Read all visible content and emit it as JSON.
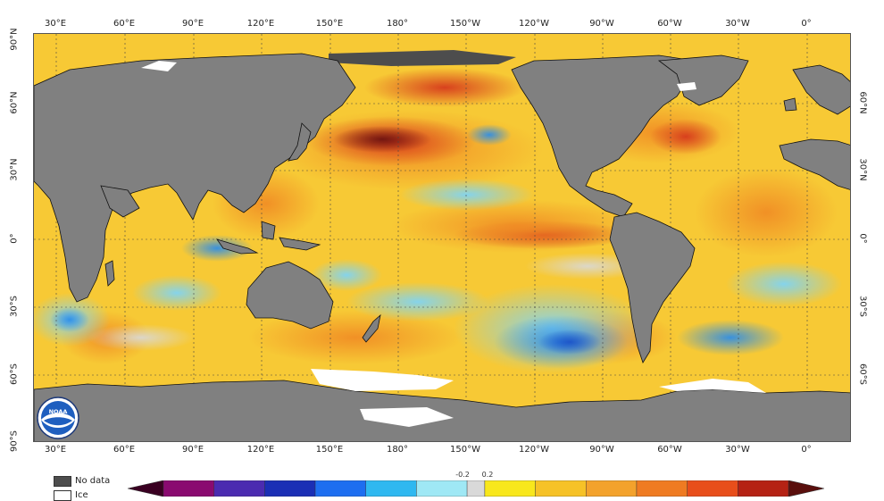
{
  "map": {
    "lon_labels": [
      "30°E",
      "60°E",
      "90°E",
      "120°E",
      "150°E",
      "180°",
      "150°W",
      "120°W",
      "90°W",
      "60°W",
      "30°W",
      "0°"
    ],
    "lat_labels": [
      "90°N",
      "60°N",
      "30°N",
      "0°",
      "30°S",
      "60°S",
      "90°S"
    ],
    "lat_labels_right": [
      "60°N",
      "30°N",
      "0°",
      "30°S",
      "60°S"
    ],
    "colors": {
      "land": "#808080",
      "no_data": "#4d4d4d",
      "ice": "#ffffff",
      "warm_base": "#f7c935",
      "warm_orange": "#f08a24",
      "warm_red": "#d63a1c",
      "warm_dark": "#6e1410",
      "cool_light": "#7fd4f5",
      "cool_blue": "#2f8ee6",
      "cool_deep": "#1a4fc7",
      "neutral": "#d9d9d9"
    }
  },
  "legend": {
    "no_data_label": "No data",
    "ice_label": "Ice"
  },
  "colorbar": {
    "tick_labels": [
      "-0.2",
      "0.2"
    ],
    "colors": [
      "#3a0022",
      "#8a0a70",
      "#4b2bb0",
      "#1b2fb5",
      "#1e6ef0",
      "#2fb8f0",
      "#9fe8f5",
      "#d9d9d9",
      "#f8e71c",
      "#f6c227",
      "#f3a22c",
      "#ef7b22",
      "#e84e1b",
      "#b52214",
      "#5a0f0d"
    ]
  }
}
